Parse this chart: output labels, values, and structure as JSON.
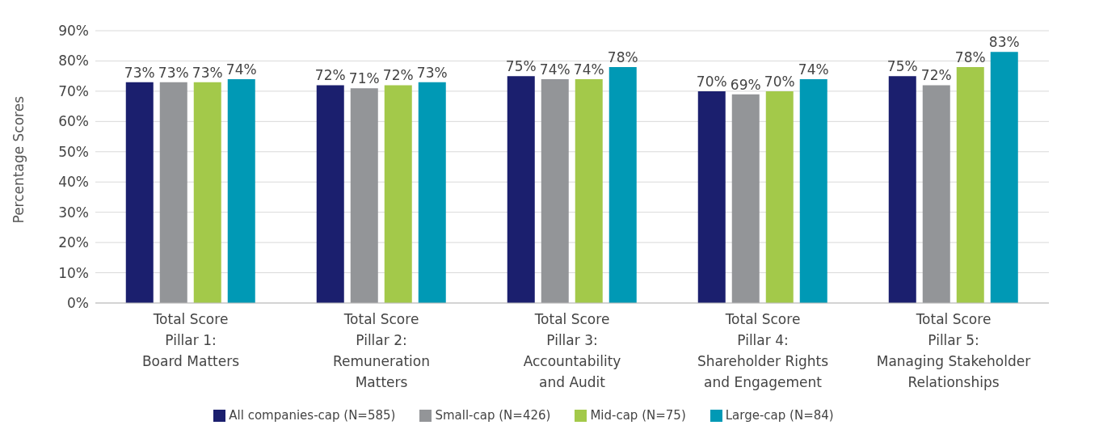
{
  "chart_data": {
    "type": "bar",
    "ylabel": "Percentage Scores",
    "categories": [
      "Total Score\nPillar 1:\nBoard Matters",
      "Total Score\nPillar 2:\nRemuneration\nMatters",
      "Total Score\nPillar 3:\nAccountability\nand Audit",
      "Total Score\nPillar 4:\nShareholder Rights\nand Engagement",
      "Total Score\nPillar 5:\nManaging Stakeholder\nRelationships"
    ],
    "series": [
      {
        "name": "All companies-cap (N=585)",
        "color": "#1b1f6e",
        "values": [
          73,
          72,
          75,
          70,
          75
        ],
        "value_labels": [
          "73%",
          "72%",
          "75%",
          "70%",
          "75%"
        ]
      },
      {
        "name": "Small-cap (N=426)",
        "color": "#939598",
        "values": [
          73,
          71,
          74,
          69,
          72
        ],
        "value_labels": [
          "73%",
          "71%",
          "74%",
          "69%",
          "72%"
        ]
      },
      {
        "name": "Mid-cap (N=75)",
        "color": "#a3c94a",
        "values": [
          73,
          72,
          74,
          70,
          78
        ],
        "value_labels": [
          "73%",
          "72%",
          "74%",
          "70%",
          "78%"
        ]
      },
      {
        "name": "Large-cap (N=84)",
        "color": "#0099b5",
        "values": [
          74,
          73,
          78,
          74,
          83
        ],
        "value_labels": [
          "74%",
          "73%",
          "78%",
          "74%",
          "83%"
        ]
      }
    ],
    "ylim": [
      0,
      90
    ],
    "yticks": [
      {
        "value": 0,
        "label": "0%"
      },
      {
        "value": 10,
        "label": "10%"
      },
      {
        "value": 20,
        "label": "20%"
      },
      {
        "value": 30,
        "label": "30%"
      },
      {
        "value": 40,
        "label": "40%"
      },
      {
        "value": 50,
        "label": "50%"
      },
      {
        "value": 60,
        "label": "60%"
      },
      {
        "value": 70,
        "label": "70%"
      },
      {
        "value": 80,
        "label": "80%"
      },
      {
        "value": 90,
        "label": "90%"
      }
    ],
    "grid": "y",
    "legend": "bottom"
  }
}
